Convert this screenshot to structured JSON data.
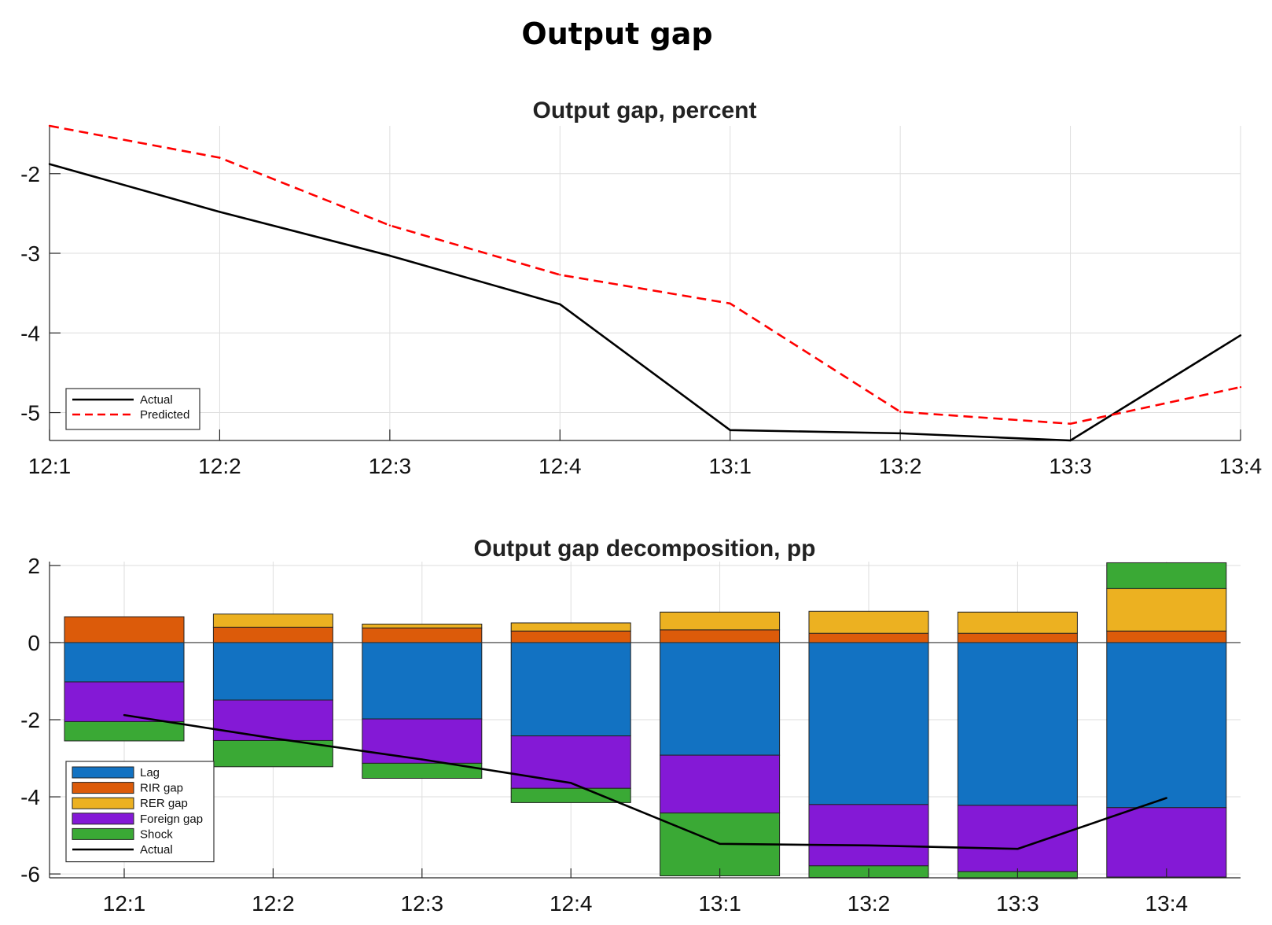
{
  "figure_title": "Output gap",
  "chart_data": [
    {
      "type": "line",
      "title": "Output gap, percent",
      "x": [
        "12:1",
        "12:2",
        "12:3",
        "12:4",
        "13:1",
        "13:2",
        "13:3",
        "13:4"
      ],
      "ylim": [
        -5.35,
        -1.4
      ],
      "yticks": [
        -5,
        -4,
        -3,
        -2
      ],
      "grid": true,
      "legend_position": "bottom-left",
      "series": [
        {
          "name": "Actual",
          "style": "solid",
          "color": "#000000",
          "values": [
            -1.88,
            -2.48,
            -3.03,
            -3.64,
            -5.22,
            -5.26,
            -5.35,
            -4.03
          ]
        },
        {
          "name": "Predicted",
          "style": "dashed",
          "color": "#ff0000",
          "values": [
            -1.4,
            -1.8,
            -2.65,
            -3.27,
            -3.63,
            -4.99,
            -5.14,
            -4.68
          ]
        }
      ]
    },
    {
      "type": "bar",
      "stacked": true,
      "title": "Output gap decomposition, pp",
      "categories": [
        "12:1",
        "12:2",
        "12:3",
        "12:4",
        "13:1",
        "13:2",
        "13:3",
        "13:4"
      ],
      "ylim": [
        -6.1,
        2.1
      ],
      "yticks": [
        -6,
        -4,
        -2,
        0,
        2
      ],
      "grid": true,
      "legend_position": "bottom-left",
      "series": [
        {
          "name": "Lag",
          "color": "#1272c2",
          "values": [
            -1.02,
            -1.49,
            -1.98,
            -2.42,
            -2.92,
            -4.2,
            -4.22,
            -4.28
          ]
        },
        {
          "name": "RIR gap",
          "color": "#dc5b0a",
          "values": [
            0.67,
            0.4,
            0.38,
            0.3,
            0.33,
            0.24,
            0.24,
            0.3
          ]
        },
        {
          "name": "RER gap",
          "color": "#ecb121",
          "values": [
            0.0,
            0.34,
            0.1,
            0.21,
            0.46,
            0.57,
            0.55,
            1.1
          ]
        },
        {
          "name": "Foreign gap",
          "color": "#8419d6",
          "values": [
            -1.03,
            -1.05,
            -1.15,
            -1.36,
            -1.5,
            -1.59,
            -1.72,
            -1.8
          ]
        },
        {
          "name": "Shock",
          "color": "#3aa935",
          "values": [
            -0.5,
            -0.68,
            -0.39,
            -0.37,
            -1.63,
            -0.3,
            -0.18,
            0.67
          ]
        }
      ],
      "line": {
        "name": "Actual",
        "color": "#000000",
        "values": [
          -1.88,
          -2.48,
          -3.03,
          -3.64,
          -5.22,
          -5.26,
          -5.35,
          -4.03
        ]
      }
    }
  ]
}
